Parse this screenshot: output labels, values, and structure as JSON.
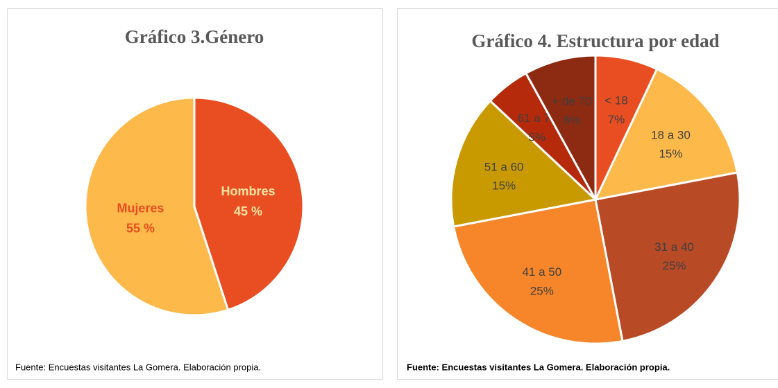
{
  "chart_data": [
    {
      "type": "pie",
      "title": "Gráfico 3.Género",
      "categories": [
        "Hombres",
        "Mujeres"
      ],
      "values": [
        45,
        55
      ],
      "value_labels": [
        "45 %",
        "55 %"
      ],
      "colors": [
        "#e84e22",
        "#fdb94a"
      ],
      "label_colors": [
        "#fde3a0",
        "#e84e22"
      ],
      "source": "Fuente: Encuestas visitantes La Gomera. Elaboración propia."
    },
    {
      "type": "pie",
      "title": "Gráfico 4. Estructura por edad",
      "categories": [
        "< 18",
        "18 a 30",
        "31 a 40",
        "41 a 50",
        "51 a 60",
        "61 a 70",
        "+ de 70"
      ],
      "values": [
        7,
        15,
        25,
        25,
        15,
        5,
        8
      ],
      "value_labels": [
        "7%",
        "15%",
        "25%",
        "25%",
        "15%",
        "5%",
        "8%"
      ],
      "colors": [
        "#e84e22",
        "#fdb94a",
        "#b84a26",
        "#f7852a",
        "#c99a00",
        "#b52a0a",
        "#8d2a12"
      ],
      "label_colors": [
        "#404040",
        "#404040",
        "#404040",
        "#404040",
        "#404040",
        "#404040",
        "#404040"
      ],
      "source": "Fuente: Encuestas visitantes La Gomera. Elaboración propia."
    }
  ]
}
